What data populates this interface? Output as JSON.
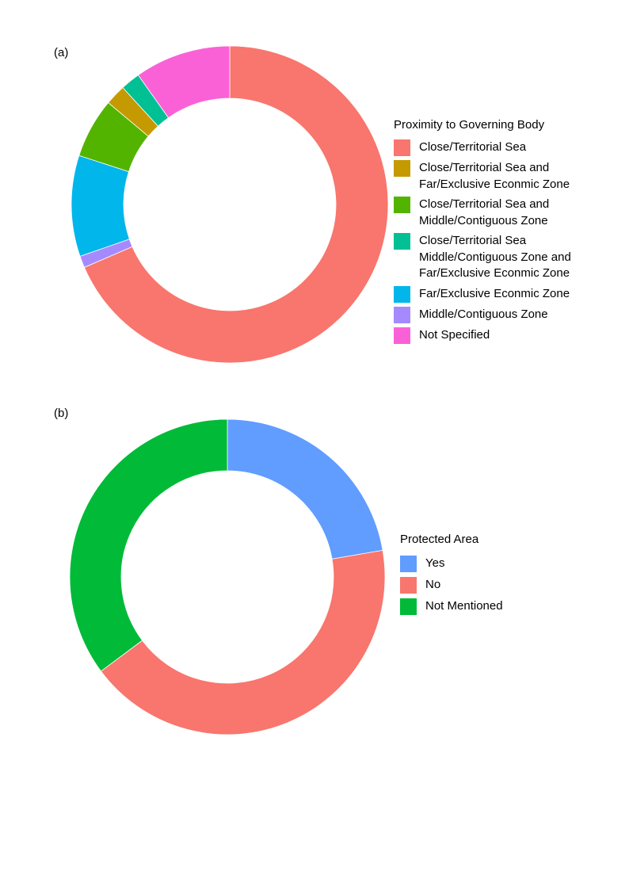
{
  "panels": {
    "a": {
      "label": "(a)"
    },
    "b": {
      "label": "(b)"
    }
  },
  "chart_data": [
    {
      "type": "pie",
      "variant": "donut",
      "panel": "(a)",
      "legend_title": "Proximity to Governing Body",
      "legend_position": "right",
      "start": "top",
      "direction": "clockwise",
      "slices": [
        {
          "label": "Close/Territorial Sea",
          "value": 68.5,
          "color": "#F8766D"
        },
        {
          "label": "Middle/Contiguous Zone",
          "value": 1.2,
          "color": "#A58AFF"
        },
        {
          "label": "Far/Exclusive Econmic Zone",
          "value": 10.3,
          "color": "#00B6EB"
        },
        {
          "label": "Close/Territorial Sea and\nMiddle/Contiguous Zone",
          "value": 6.1,
          "color": "#53B400"
        },
        {
          "label": "Close/Territorial Sea and\nFar/Exclusive Econmic Zone",
          "value": 2.1,
          "color": "#C49A00"
        },
        {
          "label": "Close/Territorial Sea\nMiddle/Contiguous Zone and\nFar/Exclusive Econmic Zone",
          "value": 2.0,
          "color": "#00C094"
        },
        {
          "label": "Not Specified",
          "value": 9.8,
          "color": "#FB61D7"
        }
      ],
      "legend_order": [
        "Close/Territorial Sea",
        "Close/Territorial Sea and\nFar/Exclusive Econmic Zone",
        "Close/Territorial Sea and\nMiddle/Contiguous Zone",
        "Close/Territorial Sea\nMiddle/Contiguous Zone and\nFar/Exclusive Econmic Zone",
        "Far/Exclusive Econmic Zone",
        "Middle/Contiguous Zone",
        "Not Specified"
      ]
    },
    {
      "type": "pie",
      "variant": "donut",
      "panel": "(b)",
      "legend_title": "Protected Area",
      "legend_position": "right",
      "start": "top",
      "direction": "clockwise",
      "slices": [
        {
          "label": "Yes",
          "value": 22.3,
          "color": "#619CFF"
        },
        {
          "label": "No",
          "value": 42.5,
          "color": "#F8766D"
        },
        {
          "label": "Not Mentioned",
          "value": 35.2,
          "color": "#00BA38"
        }
      ],
      "legend_order": [
        "Yes",
        "No",
        "Not Mentioned"
      ]
    }
  ]
}
